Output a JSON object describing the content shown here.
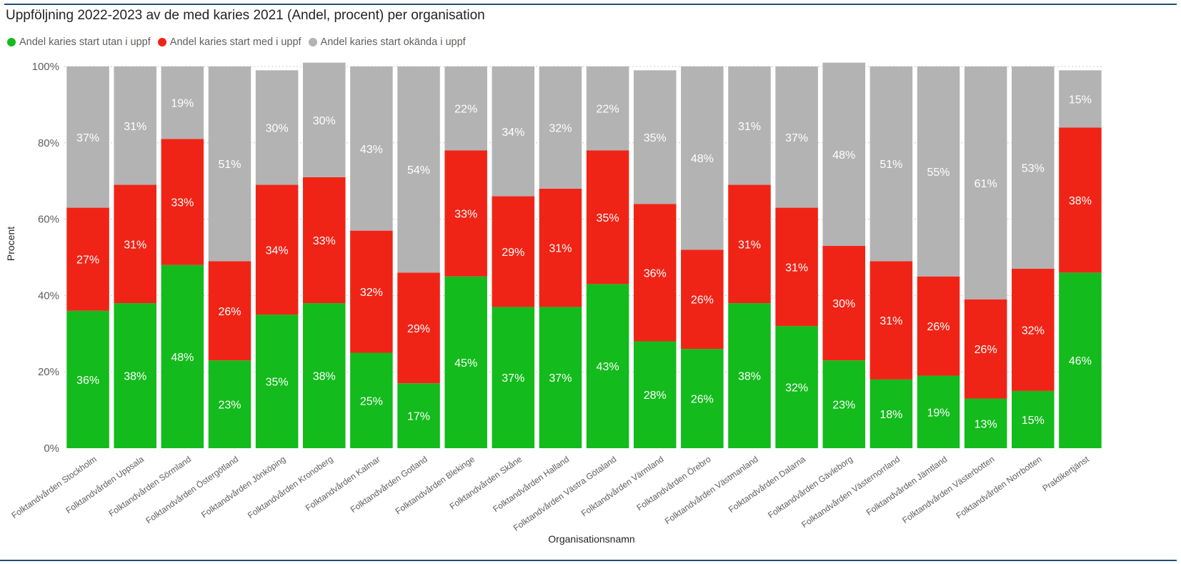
{
  "header": {
    "title": "Uppföljning 2022-2023 av de med karies 2021 (Andel, procent) per organisation"
  },
  "colors": {
    "green": "#13bb1c",
    "red": "#f02416",
    "gray": "#b3b3b3",
    "rule": "#1f4e79"
  },
  "chart_data": {
    "type": "bar",
    "stacked": true,
    "title": "Uppföljning 2022-2023 av de med karies 2021 (Andel, procent) per organisation",
    "xlabel": "Organisationsnamn",
    "ylabel": "Procent",
    "ylim": [
      0,
      100
    ],
    "yticks": [
      "0%",
      "20%",
      "40%",
      "60%",
      "80%",
      "100%"
    ],
    "grid": true,
    "legend_position": "top-left",
    "categories": [
      "Folktandvården Stockholm",
      "Folktandvården Uppsala",
      "Folktandvården Sörmland",
      "Folktandvården Östergötland",
      "Folktandvården Jönköping",
      "Folktandvården Kronoberg",
      "Folktandvården Kalmar",
      "Folktandvården Gotland",
      "Folktandvården Blekinge",
      "Folktandvården Skåne",
      "Folktandvården Halland",
      "Folktandvården Västra Götaland",
      "Folktandvården Värmland",
      "Folktandvården Örebro",
      "Folktandvården Västmanland",
      "Folktandvården Dalarna",
      "Folktandvården Gävleborg",
      "Folktandvården Västernorrland",
      "Folktandvården Jämtland",
      "Folktandvården Västerbotten",
      "Folktandvården Norrbotten",
      "Praktikertjänst"
    ],
    "series": [
      {
        "name": "Andel karies start utan i uppf",
        "color": "#13bb1c",
        "values": [
          36,
          38,
          48,
          23,
          35,
          38,
          25,
          17,
          45,
          37,
          37,
          43,
          28,
          26,
          38,
          32,
          23,
          18,
          19,
          13,
          15,
          46
        ],
        "labels": [
          "36%",
          "38%",
          "48%",
          "23%",
          "35%",
          "38%",
          "25%",
          "17%",
          "45%",
          "37%",
          "37%",
          "43%",
          "28%",
          "26%",
          "38%",
          "32%",
          "23%",
          "18%",
          "19%",
          "13%",
          "15%",
          "46%"
        ]
      },
      {
        "name": "Andel karies start med i uppf",
        "color": "#f02416",
        "values": [
          27,
          31,
          33,
          26,
          34,
          33,
          32,
          29,
          33,
          29,
          31,
          35,
          36,
          26,
          31,
          31,
          30,
          31,
          26,
          26,
          32,
          38
        ],
        "labels": [
          "27%",
          "31%",
          "33%",
          "26%",
          "34%",
          "33%",
          "32%",
          "29%",
          "33%",
          "29%",
          "31%",
          "35%",
          "36%",
          "26%",
          "31%",
          "31%",
          "30%",
          "31%",
          "26%",
          "26%",
          "32%",
          "38%"
        ]
      },
      {
        "name": "Andel karies start okända i uppf",
        "color": "#b3b3b3",
        "values": [
          37,
          31,
          19,
          51,
          30,
          30,
          43,
          54,
          22,
          34,
          32,
          22,
          35,
          48,
          31,
          37,
          48,
          51,
          55,
          61,
          53,
          15
        ],
        "labels": [
          "37%",
          "31%",
          "19%",
          "51%",
          "30%",
          "30%",
          "43%",
          "54%",
          "22%",
          "34%",
          "32%",
          "22%",
          "35%",
          "48%",
          "31%",
          "37%",
          "48%",
          "51%",
          "55%",
          "61%",
          "53%",
          "15%"
        ]
      }
    ]
  }
}
